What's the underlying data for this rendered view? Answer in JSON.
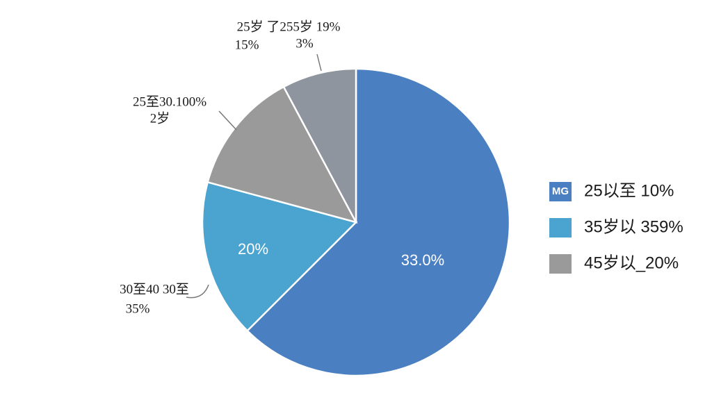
{
  "chart_data": {
    "type": "pie",
    "categories": [
      "25以至 10%",
      "35岁以 359%",
      "45岁以_20%",
      null
    ],
    "values": [
      62.5,
      16.7,
      13,
      7.8
    ],
    "colors": [
      "#4a7fc1",
      "#4ba3cf",
      "#9a9a9a",
      "#8e959e"
    ],
    "legend": "right",
    "legend_badge": "MG",
    "annotations": [
      {
        "text": "25岁 了255岁 19%"
      },
      {
        "text": "15%"
      },
      {
        "text": "3%"
      },
      {
        "text": "25至30.100%"
      },
      {
        "text": "2岁"
      },
      {
        "text": "30至40 30至"
      },
      {
        "text": "35%"
      },
      {
        "text": "20%"
      },
      {
        "text": "33.0%"
      }
    ]
  }
}
